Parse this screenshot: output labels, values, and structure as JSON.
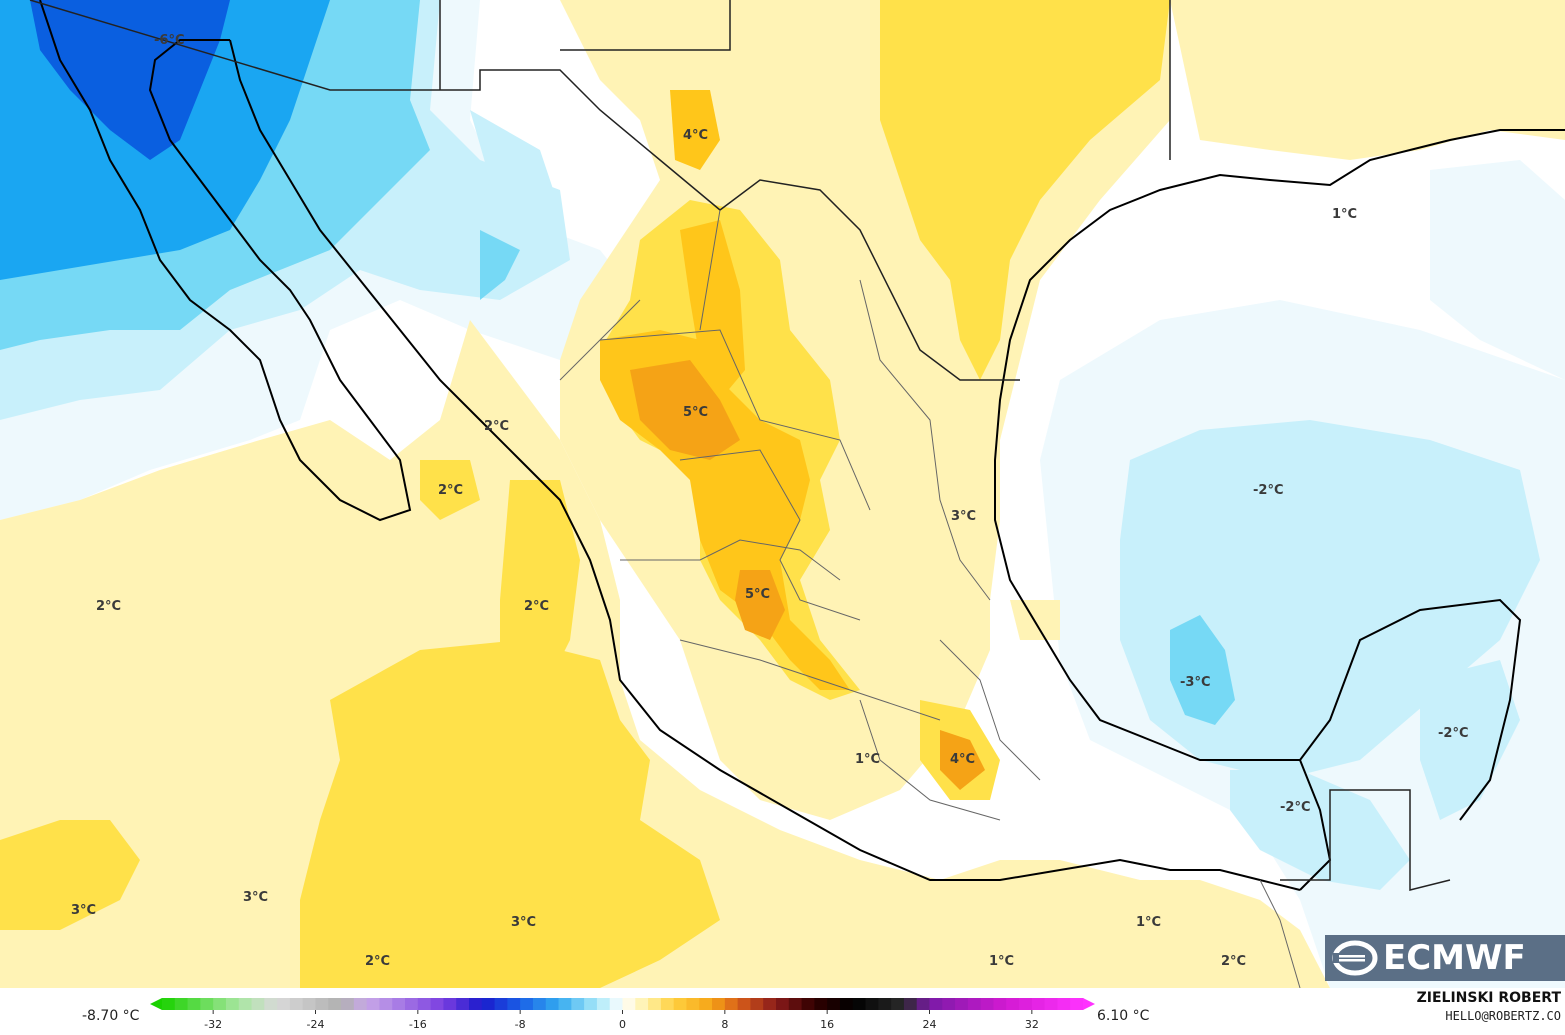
{
  "map": {
    "contour_labels": [
      {
        "id": "label-north-pacific",
        "text": "-6°C"
      },
      {
        "id": "label-texas",
        "text": "4°C"
      },
      {
        "id": "label-chihuahua",
        "text": "5°C"
      },
      {
        "id": "label-sonora",
        "text": "2°C"
      },
      {
        "id": "label-baja-gulf",
        "text": "2°C"
      },
      {
        "id": "label-pacific-west",
        "text": "2°C"
      },
      {
        "id": "label-sinaloa",
        "text": "2°C"
      },
      {
        "id": "label-zacatecas",
        "text": "5°C"
      },
      {
        "id": "label-tamaulipas",
        "text": "3°C"
      },
      {
        "id": "label-gulf-mexico",
        "text": "-2°C"
      },
      {
        "id": "label-gulf-south",
        "text": "-3°C"
      },
      {
        "id": "label-louisiana",
        "text": "1°C"
      },
      {
        "id": "label-michoacan",
        "text": "1°C"
      },
      {
        "id": "label-puebla",
        "text": "4°C"
      },
      {
        "id": "label-yucatan",
        "text": "-2°C"
      },
      {
        "id": "label-campeche",
        "text": "-2°C"
      },
      {
        "id": "label-pacific-sw",
        "text": "3°C"
      },
      {
        "id": "label-pacific-south",
        "text": "3°C"
      },
      {
        "id": "label-pacific-mid",
        "text": "3°C"
      },
      {
        "id": "label-pacific-bottom",
        "text": "2°C"
      },
      {
        "id": "label-oaxaca-coast",
        "text": "1°C"
      },
      {
        "id": "label-oaxaca-off",
        "text": "1°C"
      },
      {
        "id": "label-guatemala-coast",
        "text": "2°C"
      }
    ],
    "colors": {
      "deep_blue": "#0a5fe0",
      "blue": "#1aa6f2",
      "light_blue": "#76d9f5",
      "pale_blue": "#c8f0fb",
      "faint_blue": "#eef9fd",
      "white": "#ffffff",
      "pale_yellow": "#fff3b5",
      "yellow": "#ffe14a",
      "gold": "#ffc61a",
      "orange": "#f5a316"
    }
  },
  "logo": {
    "text": "ECMWF"
  },
  "colorbar": {
    "range_min": "-8.70 °C",
    "range_max": "6.10 °C",
    "ticks": [
      "-32",
      "-24",
      "-16",
      "-8",
      "0",
      "8",
      "16",
      "24",
      "32"
    ],
    "tick_values": [
      -32,
      -24,
      -16,
      -8,
      0,
      8,
      16,
      24,
      32
    ],
    "domain": [
      -36,
      36
    ]
  },
  "credit": {
    "name": "ZIELINSKI ROBERT",
    "email": "HELLO@ROBERTZ.CO"
  }
}
